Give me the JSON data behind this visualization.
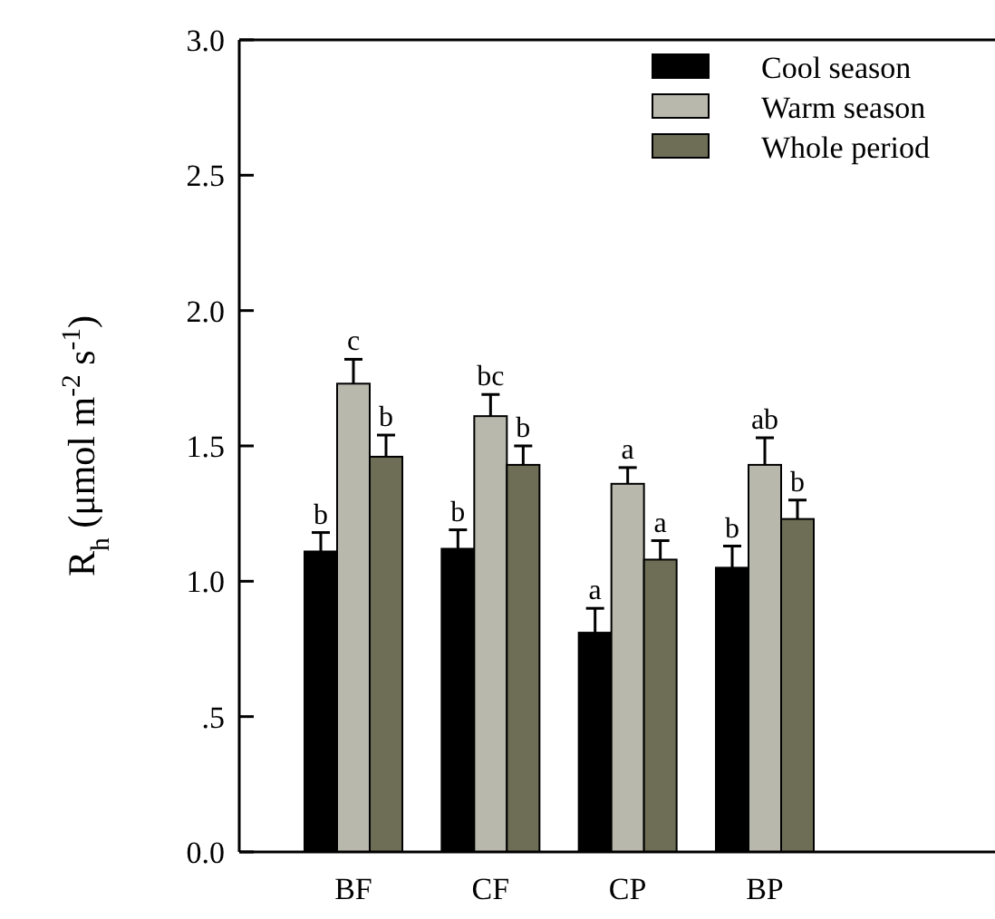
{
  "chart_data": {
    "type": "bar",
    "ylabel": "R$_{h}$ (μmol m$^{-2}$ s$^{-1}$)",
    "categories": [
      "BF",
      "CF",
      "CP",
      "BP"
    ],
    "series": [
      {
        "name": "Cool season",
        "color": "#000000",
        "values": [
          1.11,
          1.12,
          0.81,
          1.05
        ],
        "errors": [
          0.07,
          0.07,
          0.09,
          0.08
        ],
        "value_labels": [
          "b",
          "b",
          "a",
          "b"
        ]
      },
      {
        "name": "Warm season",
        "color": "#b8b8ad",
        "values": [
          1.73,
          1.61,
          1.36,
          1.43
        ],
        "errors": [
          0.09,
          0.08,
          0.06,
          0.1
        ],
        "value_labels": [
          "c",
          "bc",
          "a",
          "ab"
        ]
      },
      {
        "name": "Whole period",
        "color": "#6e6e56",
        "values": [
          1.46,
          1.43,
          1.08,
          1.23
        ],
        "errors": [
          0.08,
          0.07,
          0.07,
          0.07
        ],
        "value_labels": [
          "b",
          "b",
          "a",
          "b"
        ]
      }
    ],
    "ylim": [
      0,
      3
    ],
    "yticks": [
      {
        "value": 0,
        "label": "0.0"
      },
      {
        "value": 0.5,
        "label": ".5"
      },
      {
        "value": 1,
        "label": "1.0"
      },
      {
        "value": 1.5,
        "label": "1.5"
      },
      {
        "value": 2,
        "label": "2.0"
      },
      {
        "value": 2.5,
        "label": "2.5"
      },
      {
        "value": 3,
        "label": "3.0"
      }
    ],
    "legend": "top right",
    "grid": false
  }
}
